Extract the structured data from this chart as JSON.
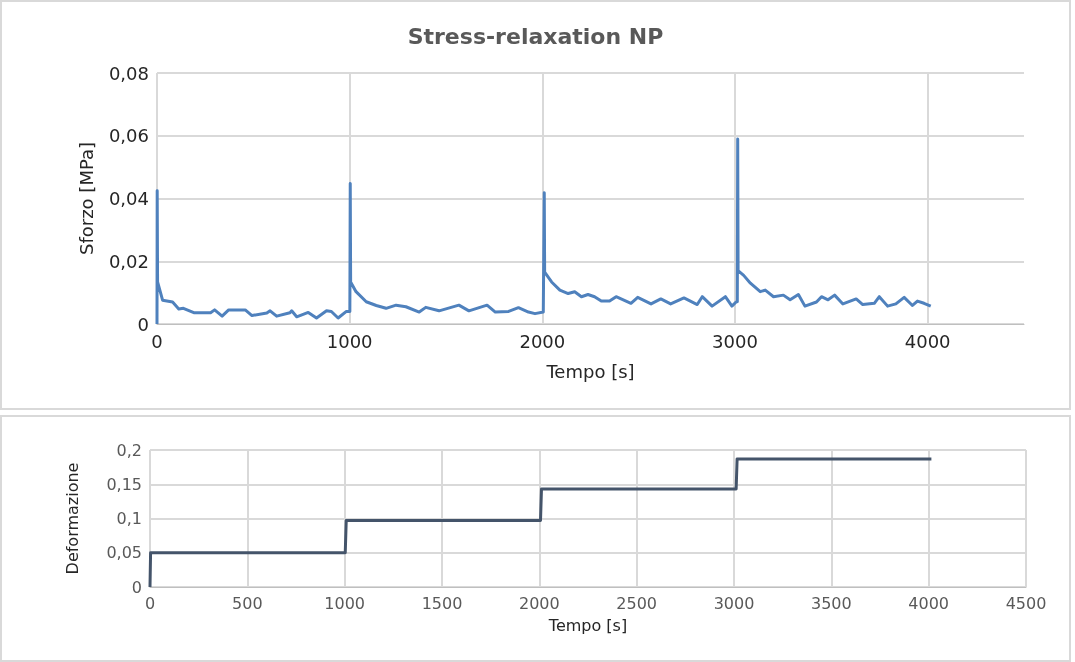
{
  "chart_data": [
    {
      "type": "line",
      "title": "Stress-relaxation NP",
      "xlabel": "Tempo [s]",
      "ylabel": "Sforzo [MPa]",
      "xlim": [
        0,
        4500
      ],
      "xticks": [
        0,
        1000,
        2000,
        3000,
        4000
      ],
      "ylim": [
        0,
        0.08
      ],
      "yticks": [
        0,
        {
          "value": 0.02,
          "label": "0,02"
        },
        {
          "value": 0.04,
          "label": "0,04"
        },
        {
          "value": 0.06,
          "label": "0,06"
        },
        {
          "value": 0.08,
          "label": "0,08"
        }
      ],
      "grid": true,
      "marker": "none",
      "series": [
        {
          "color": "#4f81bd",
          "x": [
            0,
            1,
            3,
            29,
            81,
            113,
            137,
            191,
            278,
            299,
            338,
            372,
            458,
            493,
            570,
            587,
            621,
            690,
            699,
            725,
            785,
            828,
            880,
            905,
            940,
            983,
            1001,
            1003,
            1005,
            1033,
            1086,
            1138,
            1189,
            1241,
            1292,
            1361,
            1395,
            1464,
            1567,
            1619,
            1713,
            1756,
            1825,
            1876,
            1928,
            1962,
            2005,
            2008,
            2010,
            2012,
            2048,
            2091,
            2134,
            2168,
            2203,
            2237,
            2271,
            2306,
            2349,
            2383,
            2460,
            2495,
            2564,
            2615,
            2666,
            2735,
            2804,
            2830,
            2881,
            2950,
            2984,
            3007,
            3012,
            3014,
            3016,
            3045,
            3080,
            3131,
            3157,
            3200,
            3251,
            3286,
            3329,
            3363,
            3423,
            3449,
            3483,
            3517,
            3560,
            3629,
            3663,
            3723,
            3749,
            3792,
            3835,
            3878,
            3921,
            3947,
            3981,
            4016
          ],
          "values": [
            0,
            0.0425,
            0.0134,
            0.0076,
            0.007,
            0.0048,
            0.005,
            0.0036,
            0.0036,
            0.0045,
            0.0025,
            0.0045,
            0.0045,
            0.0027,
            0.0035,
            0.0042,
            0.0025,
            0.0036,
            0.0042,
            0.0023,
            0.0037,
            0.0019,
            0.0042,
            0.004,
            0.0019,
            0.004,
            0.004,
            0.0448,
            0.0134,
            0.0103,
            0.0071,
            0.0059,
            0.005,
            0.006,
            0.0055,
            0.0038,
            0.0053,
            0.0042,
            0.006,
            0.0042,
            0.006,
            0.0038,
            0.004,
            0.0052,
            0.0038,
            0.0033,
            0.0038,
            0.0038,
            0.0418,
            0.0165,
            0.0134,
            0.0108,
            0.0097,
            0.0103,
            0.0087,
            0.0094,
            0.0087,
            0.0073,
            0.0073,
            0.0087,
            0.0066,
            0.0085,
            0.0064,
            0.008,
            0.0064,
            0.0083,
            0.0062,
            0.0087,
            0.0057,
            0.0087,
            0.0057,
            0.0071,
            0.0071,
            0.059,
            0.017,
            0.0155,
            0.013,
            0.0103,
            0.0108,
            0.0087,
            0.0092,
            0.0077,
            0.0094,
            0.0057,
            0.007,
            0.0087,
            0.0077,
            0.0092,
            0.0064,
            0.008,
            0.0062,
            0.0066,
            0.0087,
            0.0057,
            0.0064,
            0.0085,
            0.0059,
            0.0073,
            0.0066,
            0.0057
          ]
        }
      ]
    },
    {
      "type": "line",
      "xlabel": "Tempo [s]",
      "ylabel": "Deformazione",
      "xlim": [
        0,
        4500
      ],
      "xticks": [
        0,
        500,
        1000,
        1500,
        2000,
        2500,
        3000,
        3500,
        4000,
        4500
      ],
      "ylim": [
        0,
        0.2
      ],
      "yticks": [
        0,
        {
          "value": 0.05,
          "label": "0,05"
        },
        {
          "value": 0.1,
          "label": "0,1"
        },
        {
          "value": 0.15,
          "label": "0,15"
        },
        {
          "value": 0.2,
          "label": "0,2"
        }
      ],
      "grid": true,
      "marker": "none",
      "series": [
        {
          "color": "#44546a",
          "x": [
            0,
            3,
            1003,
            1008,
            2006,
            2011,
            3011,
            3016,
            4014
          ],
          "values": [
            0,
            0.05,
            0.05,
            0.097,
            0.097,
            0.143,
            0.143,
            0.187,
            0.187
          ]
        }
      ]
    }
  ]
}
